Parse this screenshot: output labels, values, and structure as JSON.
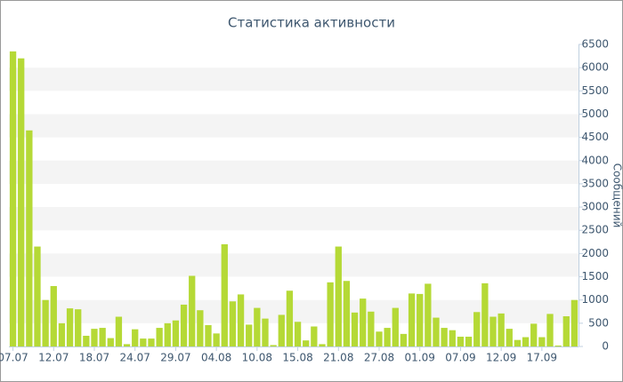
{
  "chart_data": {
    "type": "bar",
    "title": "Статистика активности",
    "y_label": "Сообщений",
    "categories": [
      "07.07",
      null,
      null,
      null,
      null,
      "12.07",
      null,
      null,
      null,
      null,
      "18.07",
      null,
      null,
      null,
      null,
      "24.07",
      null,
      null,
      null,
      null,
      "29.07",
      null,
      null,
      null,
      null,
      "04.08",
      null,
      null,
      null,
      null,
      "10.08",
      null,
      null,
      null,
      null,
      "15.08",
      null,
      null,
      null,
      null,
      "21.08",
      null,
      null,
      null,
      null,
      "27.08",
      null,
      null,
      null,
      null,
      "01.09",
      null,
      null,
      null,
      null,
      "07.09",
      null,
      null,
      null,
      null,
      "12.09",
      null,
      null,
      null,
      null,
      "17.09",
      null,
      null,
      null,
      null
    ],
    "values": [
      6350,
      6200,
      4650,
      2150,
      1000,
      1300,
      500,
      820,
      800,
      230,
      380,
      400,
      180,
      640,
      50,
      370,
      170,
      170,
      400,
      500,
      560,
      900,
      1520,
      780,
      460,
      280,
      2200,
      970,
      1120,
      470,
      830,
      600,
      30,
      680,
      1200,
      530,
      130,
      430,
      50,
      1380,
      2150,
      1410,
      730,
      1030,
      750,
      320,
      400,
      830,
      270,
      1140,
      1130,
      1350,
      620,
      400,
      350,
      210,
      210,
      740,
      1360,
      640,
      710,
      380,
      140,
      200,
      490,
      200,
      700,
      20,
      650,
      1000
    ],
    "color": "#b5d936",
    "ylim": [
      0,
      6500
    ],
    "yticks": [
      0,
      500,
      1000,
      1500,
      2000,
      2500,
      3000,
      3500,
      4000,
      4500,
      5000,
      5500,
      6000,
      6500
    ],
    "axis_side": "right",
    "grid": true
  }
}
